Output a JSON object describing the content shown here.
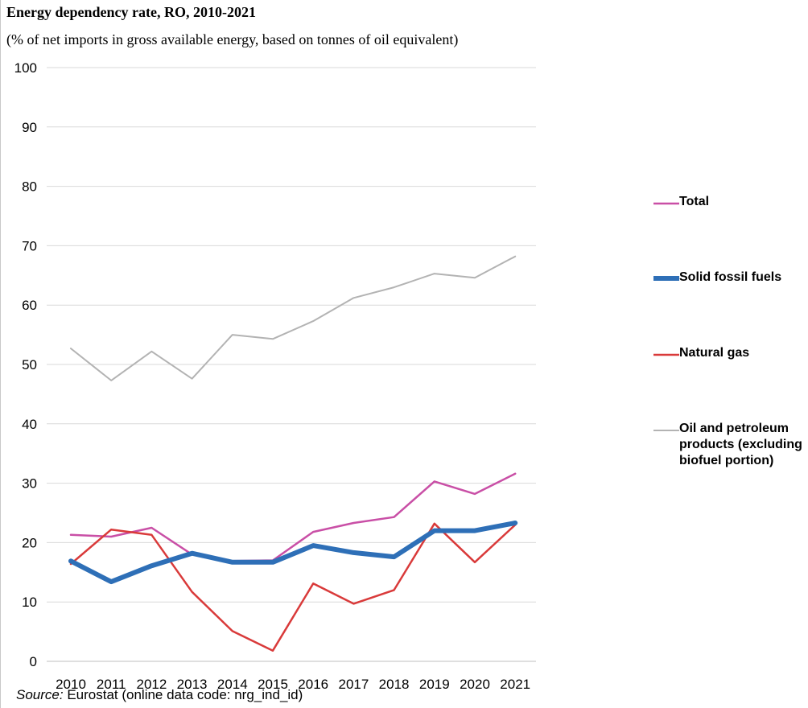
{
  "title": "Energy dependency rate, RO, 2010-2021",
  "subtitle": "(% of net imports in gross available  energy,  based on tonnes of oil equivalent)",
  "source": {
    "label": "Source:",
    "text": " Eurostat (online data code: nrg_ind_id)"
  },
  "legend": [
    {
      "label": "Total",
      "color": "#c94fa6"
    },
    {
      "label": "Solid fossil fuels",
      "color": "#2e6fb7"
    },
    {
      "label": "Natural gas",
      "color": "#d93a3a"
    },
    {
      "label": "Oil and petroleum products (excluding biofuel portion)",
      "color": "#b3b3b3"
    }
  ],
  "chart_data": {
    "type": "line",
    "title": "Energy dependency rate, RO, 2010-2021",
    "subtitle": "(% of net imports in gross available  energy,  based on tonnes of oil equivalent)",
    "xlabel": "",
    "ylabel": "",
    "ylim": [
      0,
      100
    ],
    "yticks": [
      0,
      10,
      20,
      30,
      40,
      50,
      60,
      70,
      80,
      90,
      100
    ],
    "grid": true,
    "legend_position": "right",
    "categories": [
      "2010",
      "2011",
      "2012",
      "2013",
      "2014",
      "2015",
      "2016",
      "2017",
      "2018",
      "2019",
      "2020",
      "2021"
    ],
    "series": [
      {
        "name": "Oil and petroleum products (excluding biofuel portion)",
        "color": "#b3b3b3",
        "width": "thin",
        "values": [
          52.7,
          47.3,
          52.2,
          47.6,
          55.0,
          54.3,
          57.3,
          61.2,
          63.0,
          65.3,
          64.6,
          68.2
        ]
      },
      {
        "name": "Total",
        "color": "#c94fa6",
        "width": "thin",
        "values": [
          21.3,
          21.0,
          22.5,
          18.0,
          16.9,
          17.0,
          21.8,
          23.3,
          24.3,
          30.3,
          28.2,
          31.6
        ]
      },
      {
        "name": "Natural gas",
        "color": "#d93a3a",
        "width": "thin",
        "values": [
          16.4,
          22.2,
          21.3,
          11.7,
          5.1,
          1.8,
          13.1,
          9.7,
          12.0,
          23.2,
          16.7,
          23.0
        ]
      },
      {
        "name": "Solid fossil fuels",
        "color": "#2e6fb7",
        "width": "thick",
        "values": [
          16.9,
          13.4,
          16.1,
          18.2,
          16.7,
          16.7,
          19.5,
          18.3,
          17.6,
          22.0,
          22.0,
          23.3
        ]
      }
    ]
  }
}
